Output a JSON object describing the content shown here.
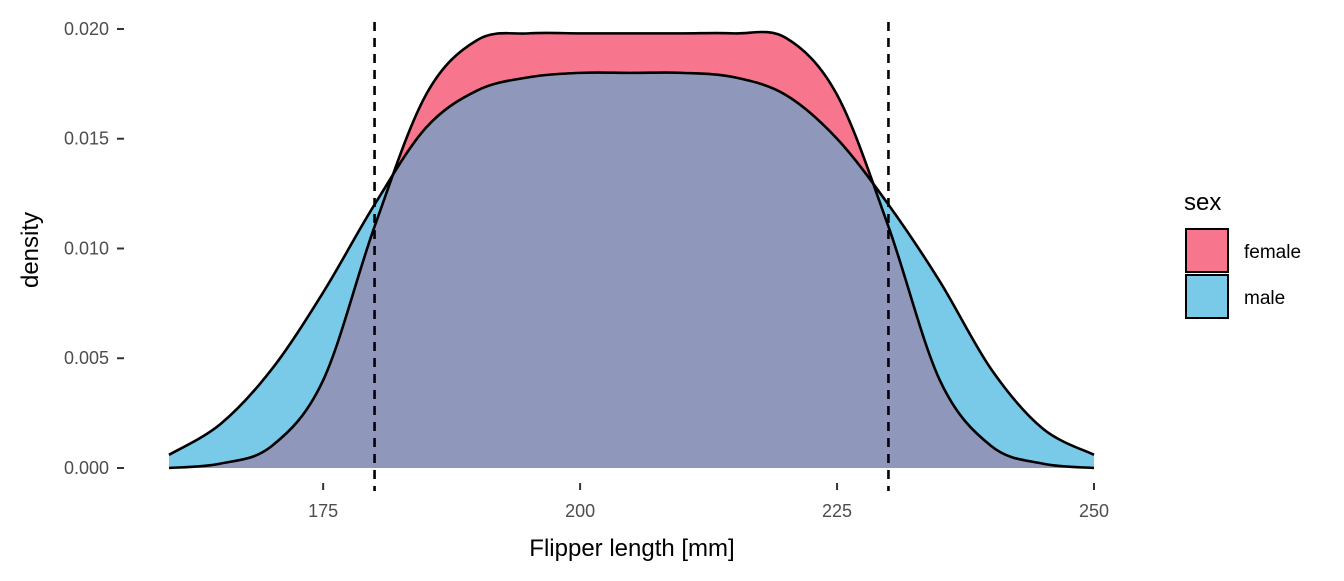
{
  "chart_data": {
    "type": "area",
    "title": "",
    "xlabel": "Flipper length [mm]",
    "ylabel": "density",
    "xlim": [
      160,
      250
    ],
    "ylim": [
      0,
      0.0205
    ],
    "x_ticks": [
      175,
      200,
      225,
      250
    ],
    "y_ticks": [
      "0.000",
      "0.005",
      "0.010",
      "0.015",
      "0.020"
    ],
    "grid": false,
    "reference_lines": [
      180,
      230
    ],
    "legend": {
      "title": "sex",
      "placement": "right"
    },
    "colors": {
      "female": "#f8768d",
      "male": "#79c9e8",
      "overlap": "#8f97ba",
      "outline": "#000000"
    },
    "x": [
      160,
      165,
      170,
      175,
      180,
      185,
      190,
      195,
      200,
      205,
      210,
      215,
      220,
      225,
      230,
      235,
      240,
      245,
      250
    ],
    "series": [
      {
        "name": "female",
        "values": [
          0.0,
          0.0002,
          0.001,
          0.004,
          0.011,
          0.017,
          0.0195,
          0.0198,
          0.0198,
          0.0198,
          0.0198,
          0.0198,
          0.0196,
          0.017,
          0.011,
          0.004,
          0.001,
          0.0002,
          0.0
        ]
      },
      {
        "name": "male",
        "values": [
          0.0006,
          0.002,
          0.0045,
          0.008,
          0.012,
          0.0155,
          0.0172,
          0.0178,
          0.018,
          0.018,
          0.018,
          0.0178,
          0.017,
          0.015,
          0.012,
          0.0085,
          0.0045,
          0.0018,
          0.0006
        ]
      }
    ]
  }
}
